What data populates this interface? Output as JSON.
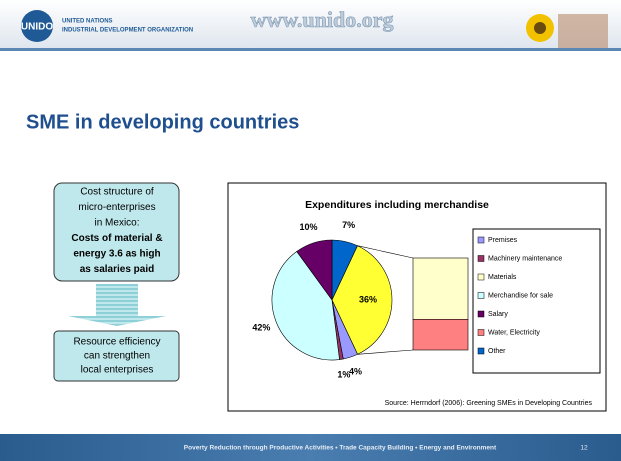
{
  "header": {
    "logo": "UNIDO",
    "org_line1": "UNITED NATIONS",
    "org_line2": "INDUSTRIAL DEVELOPMENT ORGANIZATION",
    "url": "www.unido.org"
  },
  "slide_title": "SME in developing countries",
  "box1": [
    "Cost structure of",
    "micro-enterprises",
    "in Mexico:",
    "Costs of material &",
    "energy 3.6 as high",
    "as salaries paid"
  ],
  "box2": [
    "Resource efficiency",
    "can strengthen",
    "local enterprises"
  ],
  "chart_data": {
    "type": "pie-of-bar",
    "title": "Expenditures including merchandise",
    "series": [
      {
        "name": "Premises",
        "color": "#9999ff",
        "values": [
          4
        ],
        "value_labels": [
          "4%"
        ]
      },
      {
        "name": "Machinery maintenance",
        "color": "#993366",
        "values": [
          1
        ],
        "value_labels": [
          "1%"
        ]
      },
      {
        "name": "Materials",
        "color": "#ffffcc",
        "values": [
          24
        ],
        "in_bar": true
      },
      {
        "name": "Merchandise for sale",
        "color": "#ccffff",
        "values": [
          42
        ],
        "value_labels": [
          "42%"
        ]
      },
      {
        "name": "Salary",
        "color": "#660066",
        "values": [
          10
        ],
        "value_labels": [
          "10%"
        ]
      },
      {
        "name": "Water, Electricity",
        "color": "#ff8080",
        "values": [
          12
        ],
        "in_bar": true
      },
      {
        "name": "Other",
        "color": "#0066cc",
        "values": [
          7
        ],
        "value_labels": [
          "7%"
        ]
      }
    ],
    "split": {
      "values": [
        36
      ],
      "value_labels": [
        "36%"
      ],
      "color": "#ffff33"
    },
    "source": "Source: Herrndorf (2006): Greening SMEs in Developing Countries"
  },
  "footer": {
    "text": "Poverty Reduction through Productive Activities  •  Trade Capacity Building  •  Energy and Environment",
    "page": "12"
  }
}
